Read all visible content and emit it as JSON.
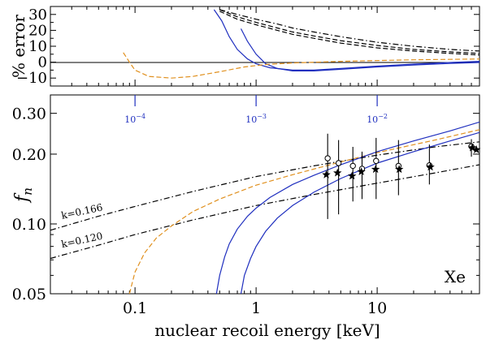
{
  "chart_data": [
    {
      "panel": "top",
      "type": "line",
      "ylabel": "% error",
      "xscale": "log",
      "xlim": [
        0.02,
        70
      ],
      "ylim": [
        -15,
        35
      ],
      "yticks": [
        "30",
        "20",
        "10",
        "0",
        "−10"
      ],
      "yticks_values": [
        30,
        20,
        10,
        0,
        -10
      ],
      "series": [
        {
          "style": "blue solid",
          "color": "#1f2fbf",
          "x": [
            0.45,
            0.52,
            0.6,
            0.7,
            0.85,
            1.0,
            1.3,
            2.0,
            3.0,
            5.0,
            10.0,
            20.0,
            40.0,
            70.0
          ],
          "y": [
            33,
            26,
            16,
            8,
            2,
            -1,
            -3.5,
            -5,
            -5,
            -4,
            -2.5,
            -1.2,
            -0.2,
            0.5
          ]
        },
        {
          "style": "blue solid",
          "color": "#1f2fbf",
          "x": [
            0.75,
            0.85,
            1.0,
            1.2,
            1.5,
            2.0,
            3.0,
            5.0,
            10.0,
            20.0,
            40.0,
            70.0
          ],
          "y": [
            21,
            13,
            5,
            -1,
            -4,
            -5.5,
            -5.5,
            -4.5,
            -3,
            -1.8,
            -0.8,
            -0.2
          ]
        },
        {
          "style": "orange dashed",
          "color": "#e0901e",
          "x": [
            0.08,
            0.09,
            0.1,
            0.13,
            0.2,
            0.3,
            0.5,
            0.8,
            1.2,
            2.0,
            5.0,
            10.0,
            20.0,
            70.0
          ],
          "y": [
            6,
            0,
            -5,
            -9,
            -10,
            -9,
            -6,
            -3,
            -1.5,
            -0.5,
            0.5,
            1.0,
            1.5,
            2.0
          ]
        },
        {
          "style": "black dash-dot",
          "color": "#000000",
          "x": [
            0.5,
            0.7,
            1.0,
            1.5,
            2.0,
            3.0,
            5.0,
            10.0,
            20.0,
            40.0,
            70.0
          ],
          "y": [
            33,
            30,
            27,
            24,
            21.5,
            19,
            16,
            12.5,
            10,
            8,
            7
          ]
        },
        {
          "style": "black dashed",
          "color": "#000000",
          "x": [
            0.5,
            0.7,
            1.0,
            1.5,
            2.0,
            3.0,
            5.0,
            10.0,
            20.0,
            40.0,
            70.0
          ],
          "y": [
            33,
            28.5,
            25,
            21.5,
            19,
            16.5,
            13.5,
            10.5,
            8,
            6.5,
            5.5
          ]
        },
        {
          "style": "black dashed",
          "color": "#000000",
          "x": [
            0.5,
            0.7,
            1.0,
            1.5,
            2.0,
            3.0,
            5.0,
            10.0,
            20.0,
            40.0,
            70.0
          ],
          "y": [
            32,
            27,
            23.5,
            20,
            17.5,
            15,
            12,
            9,
            7,
            5.5,
            4.5
          ]
        }
      ]
    },
    {
      "panel": "bottom",
      "type": "scatter",
      "xlabel": "nuclear recoil energy [keV]",
      "ylabel": "f_n",
      "xscale": "log",
      "yscale": "log",
      "xlim": [
        0.02,
        70
      ],
      "ylim": [
        0.05,
        0.36
      ],
      "xticks": [
        "0.1",
        "1",
        "10"
      ],
      "xticks_values": [
        0.1,
        1,
        10
      ],
      "yticks": [
        "0.30",
        "0.20",
        "0.10",
        "0.05"
      ],
      "yticks_values": [
        0.3,
        0.2,
        0.1,
        0.05
      ],
      "secondary_xticks": [
        {
          "x": 0.1,
          "base": "10",
          "exp": "−4"
        },
        {
          "x": 1.0,
          "base": "10",
          "exp": "−3"
        },
        {
          "x": 10.0,
          "base": "10",
          "exp": "−2"
        }
      ],
      "annotation": "Xe",
      "line_labels": [
        {
          "text": "k=0.166",
          "x": 0.025,
          "y": 0.105
        },
        {
          "text": "k=0.120",
          "x": 0.025,
          "y": 0.079
        }
      ],
      "series": [
        {
          "style": "black dash-dot",
          "color": "#000000",
          "label": "k=0.166",
          "x": [
            0.02,
            0.05,
            0.1,
            0.3,
            1.0,
            3.0,
            10.0,
            30.0,
            70.0
          ],
          "y": [
            0.094,
            0.108,
            0.119,
            0.138,
            0.16,
            0.178,
            0.198,
            0.215,
            0.226
          ]
        },
        {
          "style": "black dash-dot",
          "color": "#000000",
          "label": "k=0.120",
          "x": [
            0.02,
            0.05,
            0.1,
            0.3,
            1.0,
            3.0,
            10.0,
            30.0,
            70.0
          ],
          "y": [
            0.071,
            0.081,
            0.09,
            0.104,
            0.12,
            0.134,
            0.15,
            0.166,
            0.18
          ]
        },
        {
          "style": "orange dashed",
          "color": "#e0901e",
          "x": [
            0.09,
            0.1,
            0.12,
            0.15,
            0.2,
            0.3,
            0.5,
            1.0,
            2.0,
            5.0,
            10.0,
            30.0,
            70.0
          ],
          "y": [
            0.05,
            0.062,
            0.075,
            0.087,
            0.098,
            0.113,
            0.128,
            0.147,
            0.163,
            0.185,
            0.203,
            0.23,
            0.255
          ]
        },
        {
          "style": "blue solid",
          "color": "#1f2fbf",
          "x": [
            0.47,
            0.5,
            0.55,
            0.6,
            0.7,
            0.85,
            1.0,
            1.3,
            2.0,
            3.0,
            5.0,
            10.0,
            20.0,
            40.0,
            70.0
          ],
          "y": [
            0.05,
            0.06,
            0.072,
            0.082,
            0.095,
            0.108,
            0.117,
            0.13,
            0.148,
            0.162,
            0.18,
            0.205,
            0.228,
            0.252,
            0.275
          ]
        },
        {
          "style": "blue solid",
          "color": "#1f2fbf",
          "x": [
            0.75,
            0.8,
            0.9,
            1.0,
            1.2,
            1.5,
            2.0,
            3.0,
            5.0,
            10.0,
            20.0,
            40.0,
            70.0
          ],
          "y": [
            0.05,
            0.06,
            0.071,
            0.08,
            0.093,
            0.106,
            0.12,
            0.137,
            0.157,
            0.183,
            0.205,
            0.228,
            0.248
          ]
        }
      ],
      "points_open": [
        {
          "x": 3.9,
          "y": 0.192,
          "ylo": 0.105,
          "yhi": 0.245
        },
        {
          "x": 4.8,
          "y": 0.183,
          "ylo": 0.11,
          "yhi": 0.23
        },
        {
          "x": 6.3,
          "y": 0.178,
          "ylo": 0.125,
          "yhi": 0.215
        },
        {
          "x": 7.5,
          "y": 0.173,
          "ylo": 0.128,
          "yhi": 0.205
        },
        {
          "x": 9.8,
          "y": 0.187,
          "ylo": 0.128,
          "yhi": 0.235
        },
        {
          "x": 15.0,
          "y": 0.178,
          "ylo": 0.133,
          "yhi": 0.23
        },
        {
          "x": 27.0,
          "y": 0.179,
          "ylo": 0.148,
          "yhi": 0.22
        },
        {
          "x": 60.0,
          "y": 0.216,
          "ylo": 0.195,
          "yhi": 0.232
        }
      ],
      "points_filled": [
        {
          "x": 3.8,
          "y": 0.163
        },
        {
          "x": 4.7,
          "y": 0.166
        },
        {
          "x": 6.2,
          "y": 0.161
        },
        {
          "x": 7.4,
          "y": 0.168
        },
        {
          "x": 9.7,
          "y": 0.172
        },
        {
          "x": 15.2,
          "y": 0.172
        },
        {
          "x": 27.5,
          "y": 0.176
        },
        {
          "x": 61.0,
          "y": 0.213
        },
        {
          "x": 66.0,
          "y": 0.209
        }
      ]
    }
  ]
}
